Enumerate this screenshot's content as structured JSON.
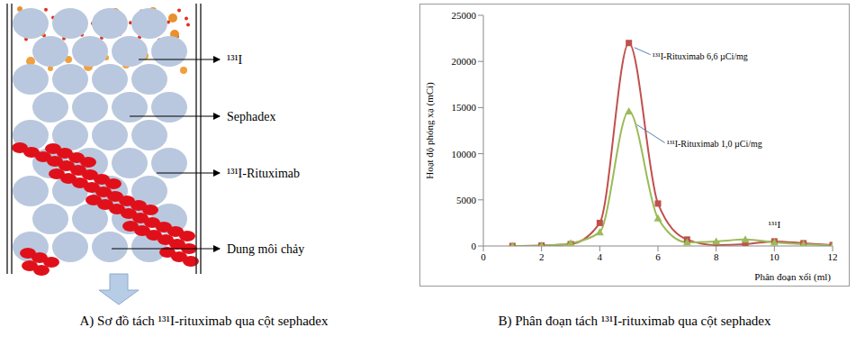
{
  "diagram": {
    "labels": [
      "¹³¹I",
      "Sephadex",
      "¹³¹I-Rituximab",
      "Dung môi chảy"
    ],
    "caption": "A) Sơ đồ tách ¹³¹I-rituximab qua cột sephadex"
  },
  "chart_data": {
    "type": "line",
    "caption": "B) Phân đoạn tách ¹³¹I-rituximab qua cột sephadex",
    "xlabel": "Phân đoạn xối (ml)",
    "ylabel": "Hoạt độ phóng xạ (mCi)",
    "x": [
      1,
      2,
      3,
      4,
      5,
      6,
      7,
      8,
      9,
      10,
      11,
      12
    ],
    "series": [
      {
        "name": "¹³¹I-Rituximab 6,6 µCi/mg",
        "color": "#c0504d",
        "marker": "square",
        "values": [
          0,
          50,
          200,
          2500,
          22000,
          4600,
          700,
          100,
          200,
          500,
          300,
          100
        ]
      },
      {
        "name": "¹³¹I-Rituximab 1,0 µCi/mg",
        "color": "#9bbb59",
        "marker": "triangle",
        "values": [
          0,
          50,
          300,
          1500,
          14600,
          3000,
          400,
          500,
          700,
          400,
          200,
          50
        ]
      }
    ],
    "xlim": [
      0,
      12
    ],
    "xticks": [
      0,
      2,
      4,
      6,
      8,
      10,
      12
    ],
    "ylim": [
      0,
      25000
    ],
    "yticks": [
      0,
      5000,
      10000,
      15000,
      20000,
      25000
    ],
    "grid": false,
    "annotations": [
      {
        "text": "¹³¹I",
        "x": 10,
        "y": 2000
      }
    ]
  }
}
